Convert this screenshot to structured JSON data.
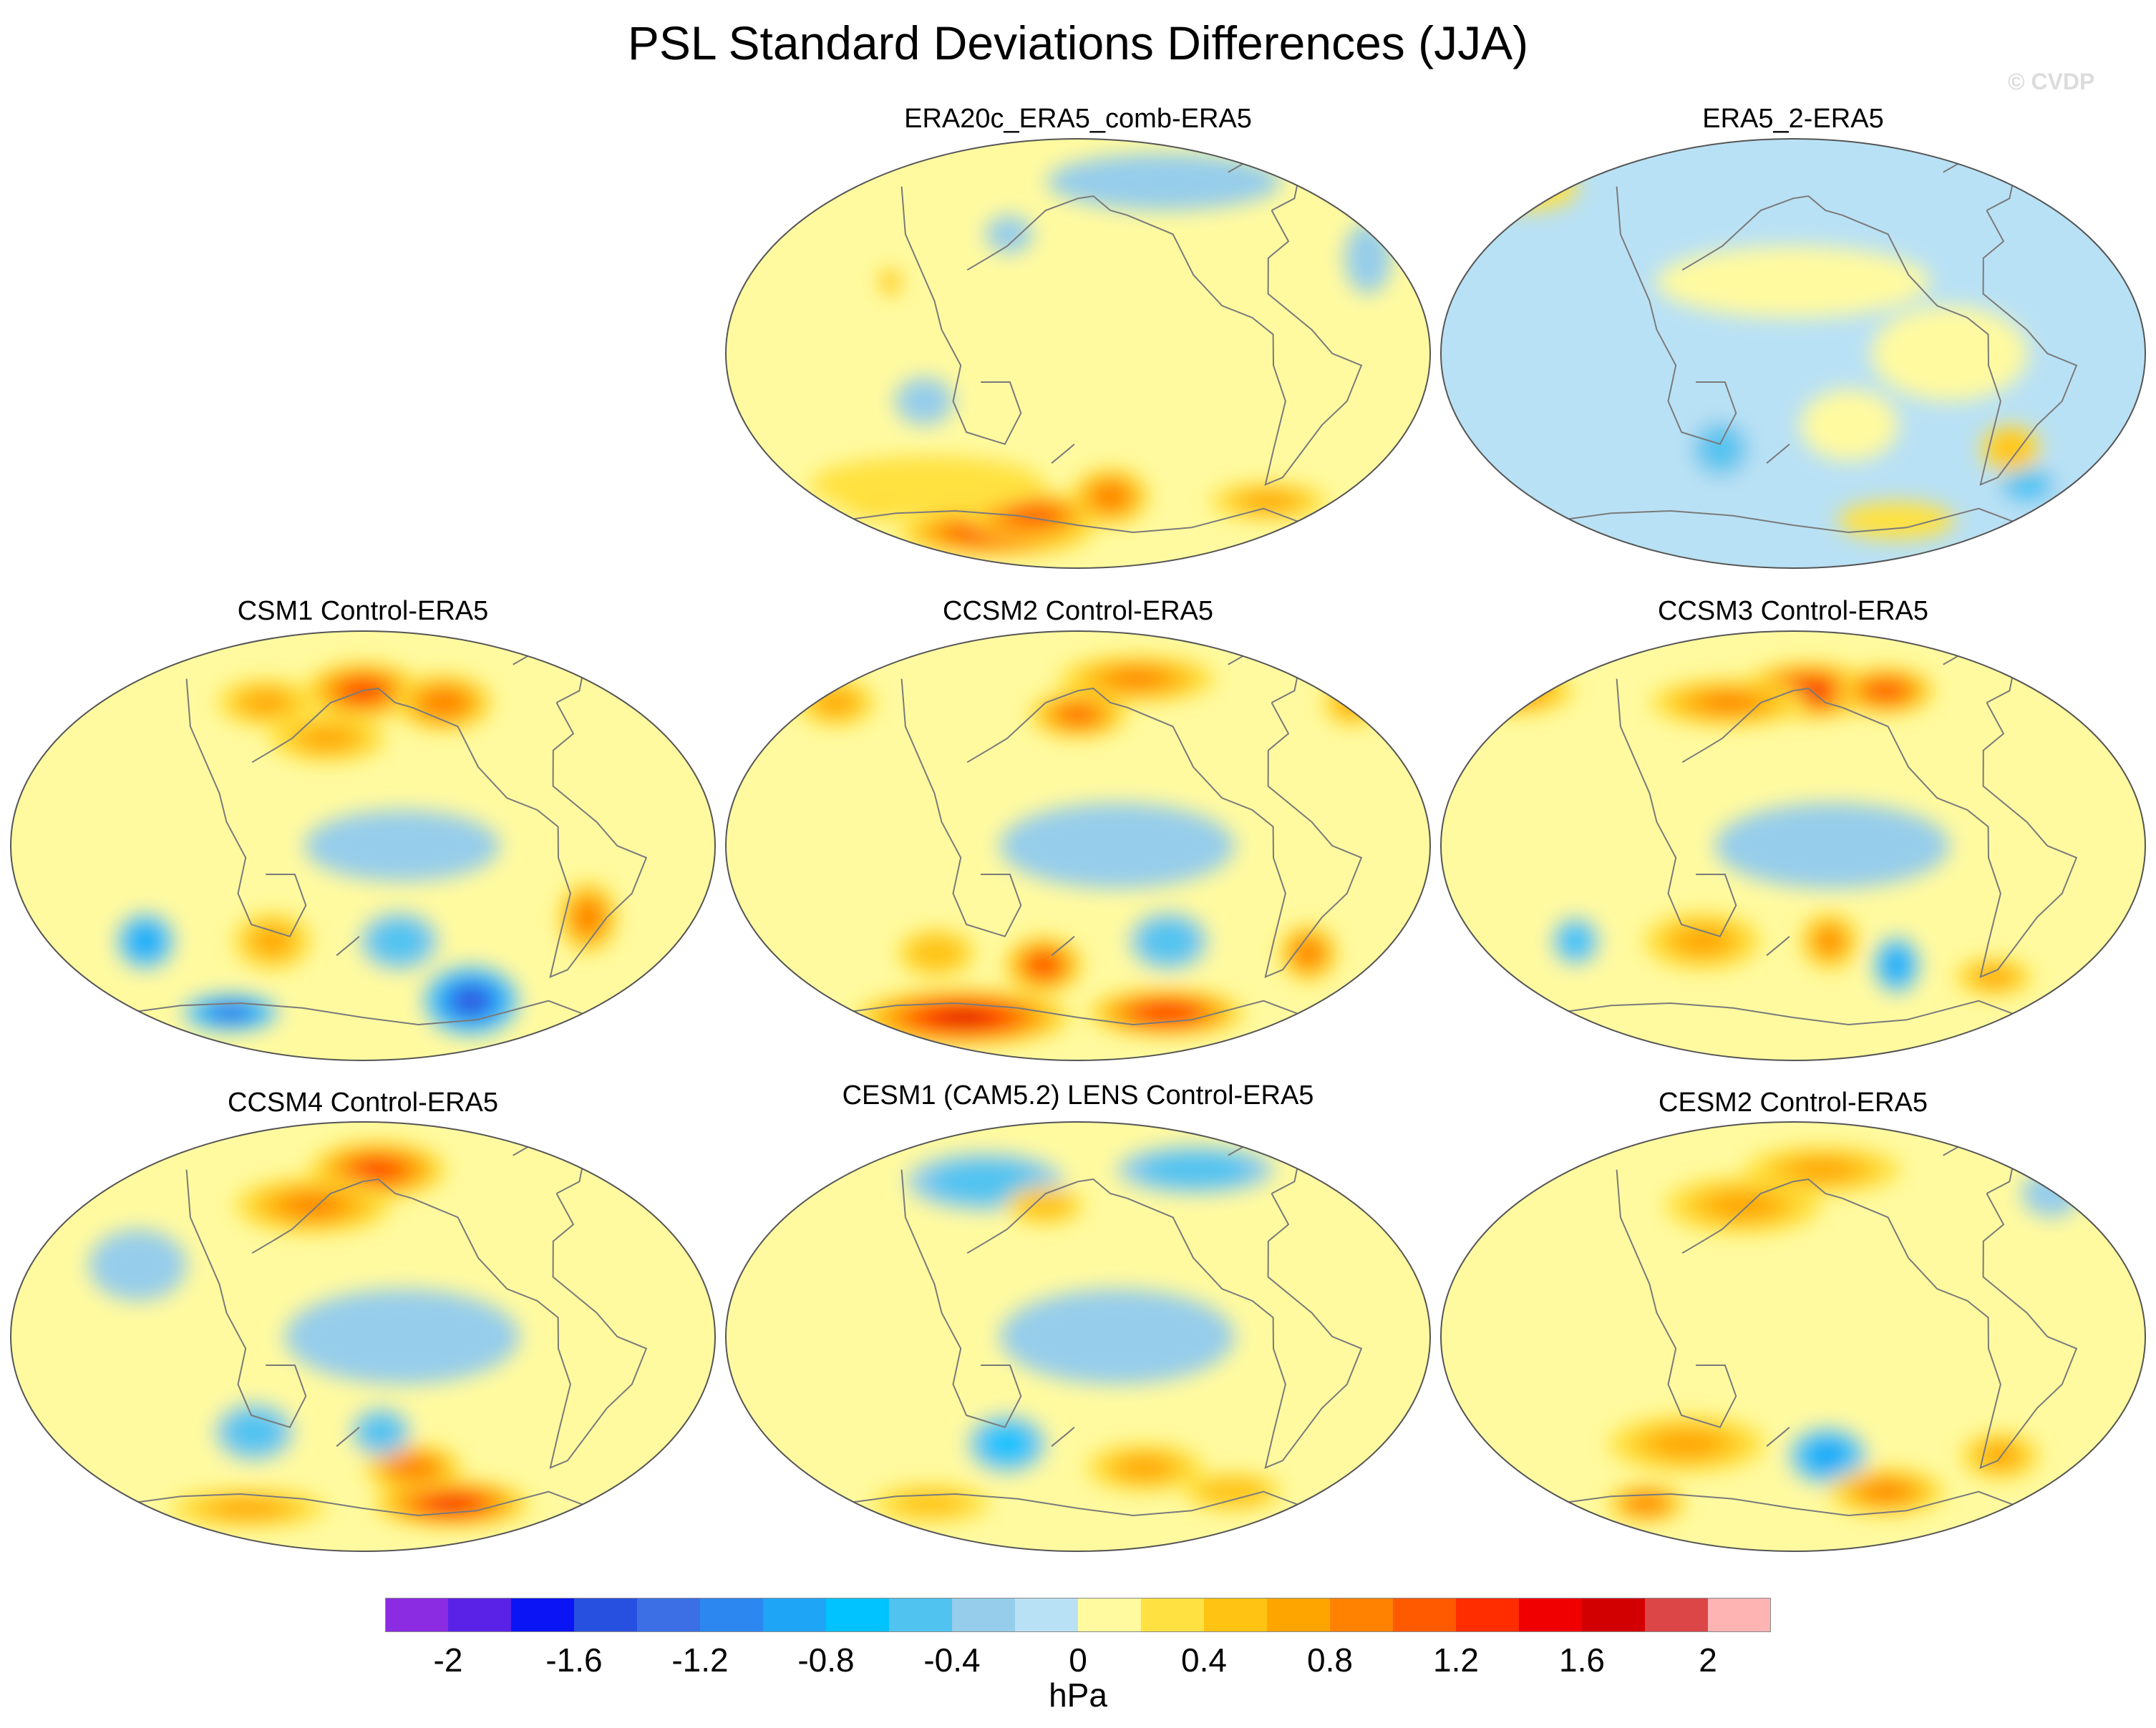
{
  "title": "PSL Standard Deviations Differences (JJA)",
  "watermark": "© CVDP",
  "units": "hPa",
  "chart_data": {
    "type": "heatmap",
    "projection": "Robinson (Pacific-centered)",
    "field": "PSL standard deviation difference, JJA",
    "levels": [
      -2.2,
      -2.0,
      -1.8,
      -1.6,
      -1.4,
      -1.2,
      -1.0,
      -0.8,
      -0.6,
      -0.4,
      -0.2,
      0.0,
      0.2,
      0.4,
      0.6,
      0.8,
      1.0,
      1.2,
      1.4,
      1.6,
      1.8,
      2.0,
      2.2
    ],
    "colors": [
      "#8b2be2",
      "#5a22e6",
      "#0a14f5",
      "#2850e0",
      "#3c6ee6",
      "#2d87f0",
      "#1ea5f5",
      "#00c3ff",
      "#50c3f0",
      "#96cdeb",
      "#b9e1f5",
      "#fffaa0",
      "#ffe141",
      "#ffc314",
      "#ffa500",
      "#ff8200",
      "#ff5a00",
      "#ff2d00",
      "#f00000",
      "#d20000",
      "#dc4646",
      "#ffb4b4"
    ],
    "colorbar_labels": [
      "-2",
      "-1.6",
      "-1.2",
      "-0.8",
      "-0.4",
      "0",
      "0.4",
      "0.8",
      "1.2",
      "1.6",
      "2"
    ],
    "colorbar_label_levels": [
      -2,
      -1.6,
      -1.2,
      -0.8,
      -0.4,
      0,
      0.4,
      0.8,
      1.2,
      1.6,
      2
    ],
    "panels": [
      {
        "title": "ERA20c_ERA5_comb-ERA5",
        "background": 0.1,
        "features": [
          {
            "lon": 120,
            "lat": -75,
            "rx": 50,
            "ry": 10,
            "value": 1.3
          },
          {
            "lon": 150,
            "lat": -68,
            "rx": 35,
            "ry": 10,
            "value": 1.1
          },
          {
            "lon": -160,
            "lat": -60,
            "rx": 20,
            "ry": 12,
            "value": 0.9
          },
          {
            "lon": 60,
            "lat": -60,
            "rx": 25,
            "ry": 10,
            "value": 0.7
          },
          {
            "lon": 90,
            "lat": -55,
            "rx": 60,
            "ry": 12,
            "value": 0.3
          },
          {
            "lon": -60,
            "lat": -62,
            "rx": 30,
            "ry": 8,
            "value": 0.6
          },
          {
            "lon": -120,
            "lat": 72,
            "rx": 60,
            "ry": 12,
            "value": -0.3
          },
          {
            "lon": -20,
            "lat": 40,
            "rx": 12,
            "ry": 15,
            "value": -0.3
          },
          {
            "lon": 140,
            "lat": 50,
            "rx": 12,
            "ry": 8,
            "value": -0.3
          },
          {
            "lon": 100,
            "lat": -20,
            "rx": 15,
            "ry": 10,
            "value": -0.3
          },
          {
            "lon": 80,
            "lat": 30,
            "rx": 6,
            "ry": 6,
            "value": 0.5
          }
        ]
      },
      {
        "title": "ERA5_2-ERA5",
        "background": -0.1,
        "features": [
          {
            "lon": 180,
            "lat": 30,
            "rx": 70,
            "ry": 15,
            "value": 0.1
          },
          {
            "lon": -100,
            "lat": 0,
            "rx": 40,
            "ry": 20,
            "value": 0.1
          },
          {
            "lon": -150,
            "lat": -30,
            "rx": 25,
            "ry": 15,
            "value": 0.1
          },
          {
            "lon": 140,
            "lat": -40,
            "rx": 15,
            "ry": 12,
            "value": -0.5
          },
          {
            "lon": -40,
            "lat": -55,
            "rx": 15,
            "ry": 8,
            "value": -0.7
          },
          {
            "lon": -60,
            "lat": -40,
            "rx": 15,
            "ry": 10,
            "value": 0.5
          },
          {
            "lon": -110,
            "lat": -70,
            "rx": 30,
            "ry": 8,
            "value": 0.3
          },
          {
            "lon": 0,
            "lat": 70,
            "rx": 25,
            "ry": 10,
            "value": 0.3
          }
        ]
      },
      {
        "title": "CSM1 Control-ERA5",
        "background": 0.1,
        "features": [
          {
            "lon": 180,
            "lat": 65,
            "rx": 30,
            "ry": 12,
            "value": 1.2
          },
          {
            "lon": -130,
            "lat": 60,
            "rx": 25,
            "ry": 12,
            "value": 0.9
          },
          {
            "lon": 160,
            "lat": 45,
            "rx": 30,
            "ry": 10,
            "value": 0.6
          },
          {
            "lon": 120,
            "lat": 60,
            "rx": 25,
            "ry": 10,
            "value": 0.6
          },
          {
            "lon": -60,
            "lat": -30,
            "rx": 15,
            "ry": 15,
            "value": 0.9
          },
          {
            "lon": 130,
            "lat": -40,
            "rx": 20,
            "ry": 12,
            "value": 0.7
          },
          {
            "lon": -160,
            "lat": 0,
            "rx": 50,
            "ry": 15,
            "value": -0.3
          },
          {
            "lon": -110,
            "lat": -65,
            "rx": 25,
            "ry": 15,
            "value": -1.6
          },
          {
            "lon": 90,
            "lat": -70,
            "rx": 25,
            "ry": 8,
            "value": -1.4
          },
          {
            "lon": 60,
            "lat": -40,
            "rx": 15,
            "ry": 12,
            "value": -1.0
          },
          {
            "lon": -160,
            "lat": -40,
            "rx": 20,
            "ry": 12,
            "value": -0.5
          }
        ]
      },
      {
        "title": "CCSM2 Control-ERA5",
        "background": 0.1,
        "features": [
          {
            "lon": 100,
            "lat": -72,
            "rx": 55,
            "ry": 12,
            "value": 1.6
          },
          {
            "lon": 160,
            "lat": -50,
            "rx": 20,
            "ry": 12,
            "value": 1.2
          },
          {
            "lon": -120,
            "lat": -70,
            "rx": 40,
            "ry": 10,
            "value": 1.3
          },
          {
            "lon": -50,
            "lat": -45,
            "rx": 15,
            "ry": 12,
            "value": 0.9
          },
          {
            "lon": 180,
            "lat": 55,
            "rx": 25,
            "ry": 10,
            "value": 1.0
          },
          {
            "lon": -140,
            "lat": 70,
            "rx": 40,
            "ry": 10,
            "value": 0.8
          },
          {
            "lon": 30,
            "lat": 60,
            "rx": 20,
            "ry": 10,
            "value": 0.7
          },
          {
            "lon": -10,
            "lat": 60,
            "rx": 15,
            "ry": 10,
            "value": 0.7
          },
          {
            "lon": -160,
            "lat": 0,
            "rx": 60,
            "ry": 18,
            "value": -0.3
          },
          {
            "lon": -130,
            "lat": -40,
            "rx": 20,
            "ry": 12,
            "value": -0.5
          },
          {
            "lon": 100,
            "lat": -45,
            "rx": 20,
            "ry": 10,
            "value": 0.5
          }
        ]
      },
      {
        "title": "CCSM3 Control-ERA5",
        "background": 0.1,
        "features": [
          {
            "lon": -170,
            "lat": 65,
            "rx": 35,
            "ry": 12,
            "value": 1.4
          },
          {
            "lon": -120,
            "lat": 65,
            "rx": 25,
            "ry": 10,
            "value": 1.1
          },
          {
            "lon": 140,
            "lat": 60,
            "rx": 40,
            "ry": 10,
            "value": 0.8
          },
          {
            "lon": 0,
            "lat": 65,
            "rx": 30,
            "ry": 10,
            "value": 0.8
          },
          {
            "lon": -160,
            "lat": 0,
            "rx": 60,
            "ry": 18,
            "value": -0.3
          },
          {
            "lon": 130,
            "lat": -40,
            "rx": 30,
            "ry": 12,
            "value": 0.6
          },
          {
            "lon": -160,
            "lat": -40,
            "rx": 15,
            "ry": 12,
            "value": 0.8
          },
          {
            "lon": -120,
            "lat": -50,
            "rx": 12,
            "ry": 12,
            "value": -0.9
          },
          {
            "lon": 60,
            "lat": -40,
            "rx": 12,
            "ry": 10,
            "value": -0.7
          },
          {
            "lon": -60,
            "lat": -55,
            "rx": 20,
            "ry": 8,
            "value": 0.6
          }
        ]
      },
      {
        "title": "CCSM4 Control-ERA5",
        "background": 0.1,
        "features": [
          {
            "lon": -170,
            "lat": 70,
            "rx": 35,
            "ry": 12,
            "value": 1.2
          },
          {
            "lon": 150,
            "lat": 55,
            "rx": 40,
            "ry": 12,
            "value": 0.8
          },
          {
            "lon": -120,
            "lat": -70,
            "rx": 40,
            "ry": 10,
            "value": 1.4
          },
          {
            "lon": -150,
            "lat": -55,
            "rx": 25,
            "ry": 10,
            "value": 0.9
          },
          {
            "lon": 100,
            "lat": -72,
            "rx": 40,
            "ry": 8,
            "value": 0.6
          },
          {
            "lon": -160,
            "lat": 0,
            "rx": 60,
            "ry": 20,
            "value": -0.3
          },
          {
            "lon": 120,
            "lat": -40,
            "rx": 20,
            "ry": 12,
            "value": -0.5
          },
          {
            "lon": -170,
            "lat": -40,
            "rx": 15,
            "ry": 10,
            "value": -0.5
          },
          {
            "lon": 60,
            "lat": 30,
            "rx": 25,
            "ry": 15,
            "value": -0.3
          }
        ]
      },
      {
        "title": "CESM1 (CAM5.2) LENS Control-ERA5",
        "background": 0.1,
        "features": [
          {
            "lon": 120,
            "lat": 65,
            "rx": 40,
            "ry": 12,
            "value": -0.5
          },
          {
            "lon": -100,
            "lat": 70,
            "rx": 40,
            "ry": 10,
            "value": -0.5
          },
          {
            "lon": -160,
            "lat": 0,
            "rx": 60,
            "ry": 20,
            "value": -0.3
          },
          {
            "lon": 160,
            "lat": 55,
            "rx": 20,
            "ry": 8,
            "value": 0.5
          },
          {
            "lon": 140,
            "lat": -45,
            "rx": 20,
            "ry": 12,
            "value": -0.8
          },
          {
            "lon": -140,
            "lat": -55,
            "rx": 30,
            "ry": 10,
            "value": 0.6
          },
          {
            "lon": -80,
            "lat": -65,
            "rx": 25,
            "ry": 8,
            "value": 0.5
          },
          {
            "lon": 80,
            "lat": -70,
            "rx": 30,
            "ry": 8,
            "value": 0.4
          }
        ]
      },
      {
        "title": "CESM2 Control-ERA5",
        "background": 0.1,
        "features": [
          {
            "lon": 150,
            "lat": 55,
            "rx": 40,
            "ry": 12,
            "value": 0.7
          },
          {
            "lon": -160,
            "lat": 70,
            "rx": 40,
            "ry": 10,
            "value": 0.6
          },
          {
            "lon": 120,
            "lat": -45,
            "rx": 40,
            "ry": 12,
            "value": 0.7
          },
          {
            "lon": -160,
            "lat": -50,
            "rx": 20,
            "ry": 12,
            "value": -1.0
          },
          {
            "lon": -120,
            "lat": -65,
            "rx": 30,
            "ry": 10,
            "value": 0.8
          },
          {
            "lon": 80,
            "lat": -70,
            "rx": 20,
            "ry": 8,
            "value": 0.9
          },
          {
            "lon": -60,
            "lat": -50,
            "rx": 20,
            "ry": 10,
            "value": 0.6
          },
          {
            "lon": -20,
            "lat": 60,
            "rx": 15,
            "ry": 10,
            "value": -0.3
          }
        ]
      }
    ]
  }
}
